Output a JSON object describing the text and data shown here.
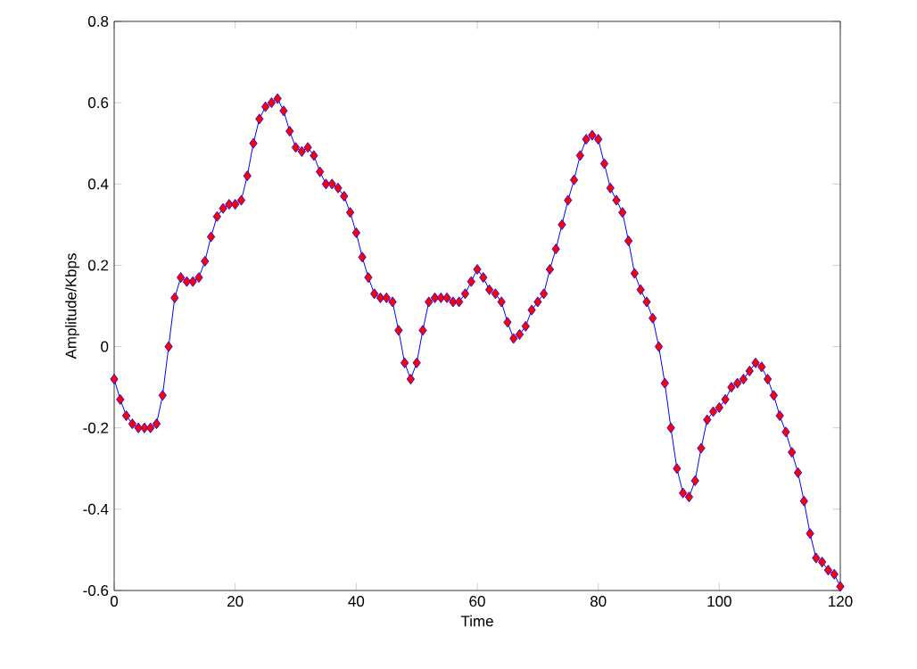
{
  "chart_data": {
    "type": "line",
    "xlabel": "Time",
    "ylabel": "Amplitude/Kbps",
    "xlim": [
      0,
      120
    ],
    "ylim": [
      -0.6,
      0.8
    ],
    "xticks": [
      0,
      20,
      40,
      60,
      80,
      100,
      120
    ],
    "yticks": [
      -0.6,
      -0.4,
      -0.2,
      0,
      0.2,
      0.4,
      0.6,
      0.8
    ],
    "grid": false,
    "marker": "diamond",
    "line_style": "solid",
    "series": [
      {
        "color": "#0000ff",
        "x": [
          0,
          1,
          2,
          3,
          4,
          5,
          6,
          7,
          8,
          9,
          10,
          11,
          12,
          13,
          14,
          15,
          16,
          17,
          18,
          19,
          20,
          21,
          22,
          23,
          24,
          25,
          26,
          27,
          28,
          29,
          30,
          31,
          32,
          33,
          34,
          35,
          36,
          37,
          38,
          39,
          40,
          41,
          42,
          43,
          44,
          45,
          46,
          47,
          48,
          49,
          50,
          51,
          52,
          53,
          54,
          55,
          56,
          57,
          58,
          59,
          60,
          61,
          62,
          63,
          64,
          65,
          66,
          67,
          68,
          69,
          70,
          71,
          72,
          73,
          74,
          75,
          76,
          77,
          78,
          79,
          80,
          81,
          82,
          83,
          84,
          85,
          86,
          87,
          88,
          89,
          90,
          91,
          92,
          93,
          94,
          95,
          96,
          97,
          98,
          99,
          100,
          101,
          102,
          103,
          104,
          105,
          106,
          107,
          108,
          109,
          110,
          111,
          112,
          113,
          114,
          115,
          116,
          117,
          118,
          119,
          120
        ],
        "values": [
          -0.08,
          -0.13,
          -0.17,
          -0.19,
          -0.2,
          -0.2,
          -0.2,
          -0.19,
          -0.12,
          0.0,
          0.12,
          0.17,
          0.16,
          0.16,
          0.17,
          0.21,
          0.27,
          0.32,
          0.34,
          0.35,
          0.35,
          0.36,
          0.42,
          0.5,
          0.56,
          0.59,
          0.6,
          0.61,
          0.58,
          0.53,
          0.49,
          0.48,
          0.49,
          0.47,
          0.43,
          0.4,
          0.4,
          0.39,
          0.37,
          0.33,
          0.28,
          0.22,
          0.17,
          0.13,
          0.12,
          0.12,
          0.11,
          0.04,
          -0.04,
          -0.08,
          -0.04,
          0.04,
          0.11,
          0.12,
          0.12,
          0.12,
          0.11,
          0.11,
          0.13,
          0.16,
          0.19,
          0.17,
          0.14,
          0.13,
          0.11,
          0.06,
          0.02,
          0.03,
          0.05,
          0.09,
          0.11,
          0.13,
          0.19,
          0.24,
          0.3,
          0.36,
          0.41,
          0.47,
          0.51,
          0.52,
          0.51,
          0.45,
          0.39,
          0.36,
          0.33,
          0.26,
          0.18,
          0.14,
          0.11,
          0.07,
          0.0,
          -0.09,
          -0.2,
          -0.3,
          -0.36,
          -0.37,
          -0.33,
          -0.25,
          -0.18,
          -0.16,
          -0.15,
          -0.13,
          -0.1,
          -0.09,
          -0.08,
          -0.06,
          -0.04,
          -0.05,
          -0.08,
          -0.12,
          -0.17,
          -0.21,
          -0.26,
          -0.31,
          -0.38,
          -0.46,
          -0.52,
          -0.53,
          -0.55,
          -0.56,
          -0.59
        ]
      }
    ]
  }
}
